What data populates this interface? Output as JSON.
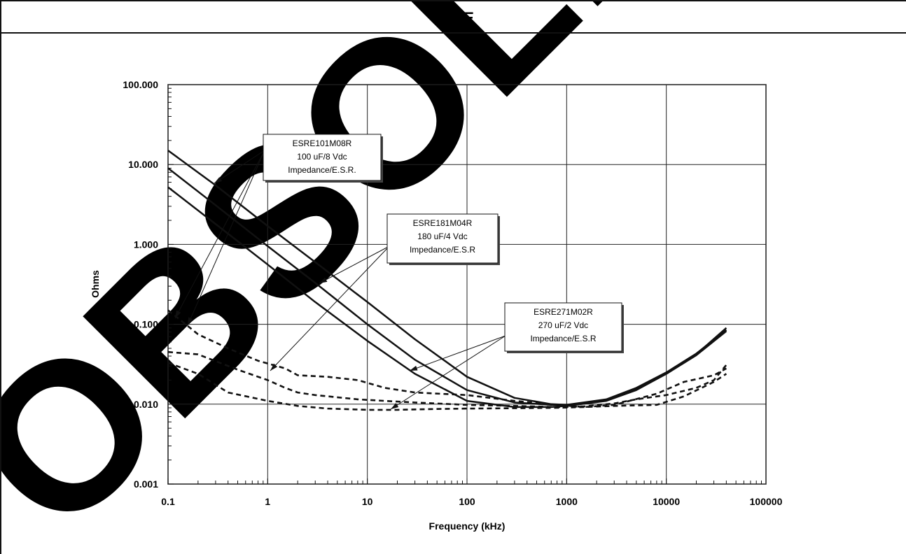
{
  "colors": {
    "ink": "#111111",
    "grid": "#222222",
    "background": "#ffffff",
    "shadow": "#444444"
  },
  "chart_data": {
    "type": "line",
    "title": "ESRE",
    "xlabel": "Frequency (kHz)",
    "ylabel": "Ohms",
    "x_scale": "log",
    "y_scale": "log",
    "xlim": [
      0.1,
      100000
    ],
    "ylim": [
      0.001,
      100
    ],
    "x_ticks": [
      "0.1",
      "1",
      "10",
      "100",
      "1000",
      "10000",
      "100000"
    ],
    "y_ticks": [
      "0.001",
      "0.010",
      "0.100",
      "1.000",
      "10.000",
      "100.000"
    ],
    "grid": true,
    "legend": "none",
    "watermark": "OBSOLETE",
    "annotations": [
      {
        "lines": [
          "ESRE101M08R",
          "100 uF/8 Vdc",
          "Impedance/E.S.R."
        ]
      },
      {
        "lines": [
          "ESRE181M04R",
          "180 uF/4 Vdc",
          "Impedance/E.S.R"
        ]
      },
      {
        "lines": [
          "ESRE271M02R",
          "270 uF/2 Vdc",
          "Impedance/E.S.R"
        ]
      }
    ],
    "series": [
      {
        "style": "solid",
        "x": [
          0.1,
          0.3,
          1,
          3,
          10,
          30,
          100,
          300,
          700,
          1000,
          2500,
          5000,
          10000,
          20000,
          40000
        ],
        "y": [
          15,
          5.5,
          1.7,
          0.6,
          0.19,
          0.065,
          0.022,
          0.012,
          0.01,
          0.0098,
          0.0115,
          0.016,
          0.025,
          0.043,
          0.085
        ]
      },
      {
        "style": "solid",
        "x": [
          0.1,
          0.3,
          1,
          3,
          10,
          30,
          100,
          300,
          700,
          1000,
          2500,
          5000,
          10000,
          20000,
          40000
        ],
        "y": [
          9,
          3.1,
          0.95,
          0.33,
          0.1,
          0.036,
          0.015,
          0.0105,
          0.0098,
          0.0097,
          0.0113,
          0.0155,
          0.024,
          0.042,
          0.09
        ]
      },
      {
        "style": "solid",
        "x": [
          0.1,
          0.3,
          1,
          3,
          10,
          30,
          100,
          300,
          700,
          1000,
          2500,
          5000,
          10000,
          20000,
          40000
        ],
        "y": [
          5.2,
          1.8,
          0.56,
          0.19,
          0.062,
          0.024,
          0.011,
          0.0092,
          0.0092,
          0.0095,
          0.011,
          0.015,
          0.024,
          0.041,
          0.082
        ]
      },
      {
        "style": "dashed",
        "x": [
          0.1,
          0.15,
          0.2,
          0.4,
          0.8,
          1.5,
          2,
          4,
          8,
          15,
          30,
          100,
          300,
          800,
          1500,
          3000,
          8000,
          15000,
          30000,
          40000
        ],
        "y": [
          0.15,
          0.1,
          0.075,
          0.05,
          0.035,
          0.028,
          0.023,
          0.022,
          0.02,
          0.016,
          0.014,
          0.013,
          0.011,
          0.0098,
          0.0092,
          0.0098,
          0.0135,
          0.019,
          0.023,
          0.028
        ]
      },
      {
        "style": "dashed",
        "x": [
          0.1,
          0.2,
          0.5,
          1,
          1.5,
          2,
          3,
          8,
          15,
          30,
          100,
          300,
          800,
          1500,
          3000,
          5000,
          10000,
          20000,
          30000,
          40000
        ],
        "y": [
          0.045,
          0.042,
          0.027,
          0.02,
          0.016,
          0.014,
          0.013,
          0.0115,
          0.011,
          0.0105,
          0.0098,
          0.0095,
          0.0092,
          0.0094,
          0.0102,
          0.0115,
          0.013,
          0.016,
          0.02,
          0.031
        ]
      },
      {
        "style": "dashed",
        "x": [
          0.1,
          0.2,
          0.4,
          1,
          2,
          4,
          10,
          20,
          50,
          100,
          300,
          800,
          1500,
          3000,
          8000,
          15000,
          30000,
          40000
        ],
        "y": [
          0.033,
          0.024,
          0.014,
          0.011,
          0.0095,
          0.0088,
          0.0085,
          0.0085,
          0.0087,
          0.0088,
          0.0089,
          0.009,
          0.0092,
          0.0095,
          0.0098,
          0.0125,
          0.019,
          0.024
        ]
      }
    ]
  }
}
